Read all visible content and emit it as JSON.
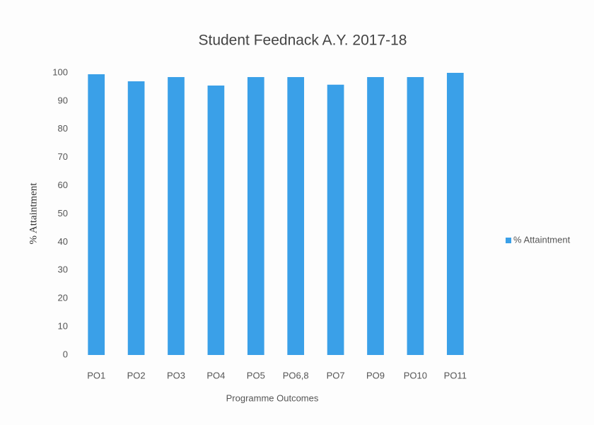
{
  "chart_data": {
    "type": "bar",
    "title": "Student Feednack A.Y. 2017-18",
    "x_label": "Programme Outcomes",
    "y_label": "% Attaintment",
    "categories": [
      "PO1",
      "PO2",
      "PO3",
      "PO4",
      "PO5",
      "PO6,8",
      "PO7",
      "PO9",
      "PO10",
      "PO11"
    ],
    "series": [
      {
        "name": "% Attaintment",
        "color": "#3aa0e8",
        "values": [
          99.5,
          97,
          98.5,
          95.5,
          98.5,
          98.5,
          95.8,
          98.5,
          98.5,
          100
        ]
      }
    ],
    "ylim": [
      0,
      100
    ],
    "yticks": [
      0,
      10,
      20,
      30,
      40,
      50,
      60,
      70,
      80,
      90,
      100
    ],
    "grid": false,
    "legend": "right"
  }
}
